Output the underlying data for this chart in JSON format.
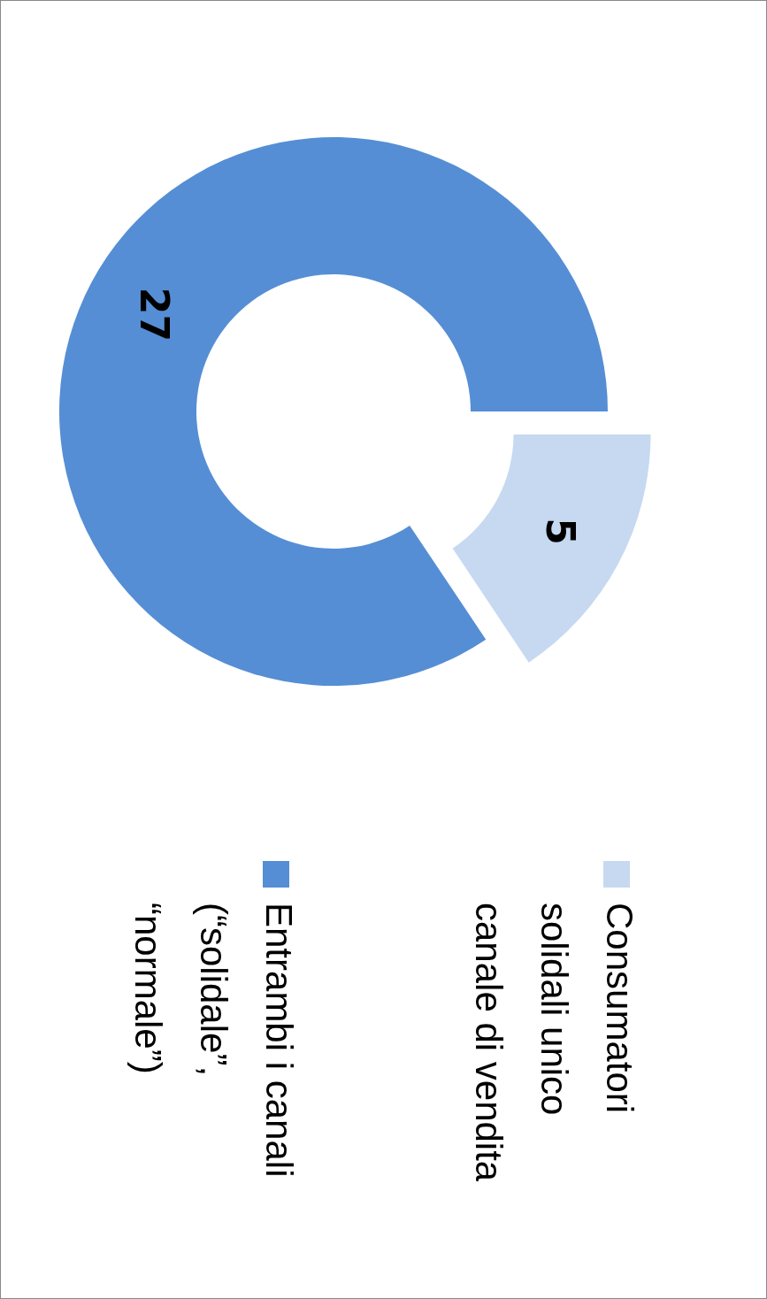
{
  "chart_data": {
    "type": "donut",
    "categories": [
      "Consumatori solidali unico canale di vendita",
      "Entrambi i canali (“solidale”, “normale”)"
    ],
    "values": [
      5,
      27
    ],
    "colors": [
      "#c6d9f1",
      "#558ed5"
    ],
    "data_labels": true,
    "legend": "bottom"
  }
}
